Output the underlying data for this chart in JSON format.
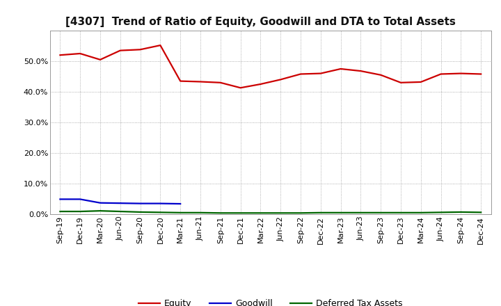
{
  "title": "[4307]  Trend of Ratio of Equity, Goodwill and DTA to Total Assets",
  "x_labels": [
    "Sep-19",
    "Dec-19",
    "Mar-20",
    "Jun-20",
    "Sep-20",
    "Dec-20",
    "Mar-21",
    "Jun-21",
    "Sep-21",
    "Dec-21",
    "Mar-22",
    "Jun-22",
    "Sep-22",
    "Dec-22",
    "Mar-23",
    "Jun-23",
    "Sep-23",
    "Dec-23",
    "Mar-24",
    "Jun-24",
    "Sep-24",
    "Dec-24"
  ],
  "equity": [
    52.0,
    52.5,
    50.5,
    53.5,
    53.8,
    55.2,
    43.5,
    43.3,
    43.0,
    41.3,
    42.5,
    44.0,
    45.8,
    46.0,
    47.5,
    46.8,
    45.5,
    43.0,
    43.2,
    45.8,
    46.0,
    45.8
  ],
  "goodwill": [
    4.9,
    4.9,
    3.7,
    3.6,
    3.5,
    3.5,
    3.4,
    null,
    null,
    null,
    null,
    null,
    null,
    null,
    null,
    null,
    null,
    null,
    null,
    null,
    null,
    null
  ],
  "dta": [
    0.9,
    0.9,
    1.1,
    0.9,
    0.7,
    0.6,
    0.5,
    0.5,
    0.4,
    0.4,
    0.4,
    0.4,
    0.4,
    0.5,
    0.5,
    0.5,
    0.5,
    0.5,
    0.5,
    0.6,
    0.7,
    0.6
  ],
  "equity_color": "#cc0000",
  "goodwill_color": "#0000cc",
  "dta_color": "#006600",
  "background_color": "#ffffff",
  "plot_bg_color": "#ffffff",
  "grid_color": "#999999",
  "ylim": [
    0,
    60
  ],
  "yticks": [
    0,
    10,
    20,
    30,
    40,
    50
  ],
  "ytick_labels": [
    "0.0%",
    "10.0%",
    "20.0%",
    "30.0%",
    "40.0%",
    "50.0%"
  ],
  "legend_labels": [
    "Equity",
    "Goodwill",
    "Deferred Tax Assets"
  ],
  "title_fontsize": 11,
  "tick_fontsize": 8,
  "line_width": 1.6
}
